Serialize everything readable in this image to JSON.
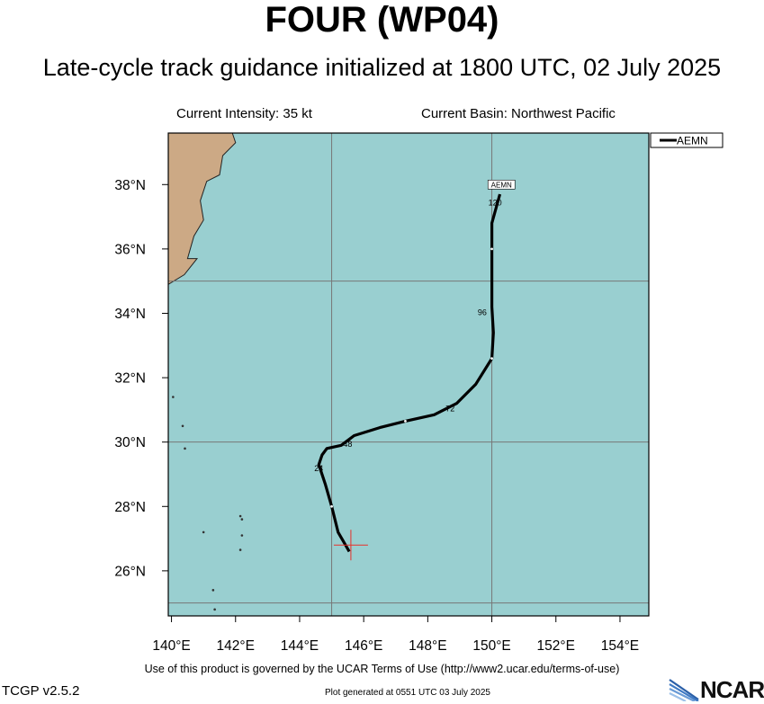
{
  "header": {
    "title": "FOUR (WP04)",
    "subtitle": "Late-cycle track guidance initialized at 1800 UTC, 02 July 2025",
    "current_intensity": "Current Intensity: 35 kt",
    "current_basin": "Current Basin: Northwest Pacific"
  },
  "map": {
    "lon_range": [
      139.9,
      154.9
    ],
    "lat_range": [
      24.6,
      39.6
    ],
    "gridlines_lon": [
      145,
      150
    ],
    "gridlines_lat": [
      25,
      30,
      35
    ],
    "x_ticks": [
      {
        "lon": 140,
        "label": "140°E"
      },
      {
        "lon": 142,
        "label": "142°E"
      },
      {
        "lon": 144,
        "label": "144°E"
      },
      {
        "lon": 146,
        "label": "146°E"
      },
      {
        "lon": 148,
        "label": "148°E"
      },
      {
        "lon": 150,
        "label": "150°E"
      },
      {
        "lon": 152,
        "label": "152°E"
      },
      {
        "lon": 154,
        "label": "154°E"
      }
    ],
    "y_ticks": [
      {
        "lat": 26,
        "label": "26°N"
      },
      {
        "lat": 28,
        "label": "28°N"
      },
      {
        "lat": 30,
        "label": "30°N"
      },
      {
        "lat": 32,
        "label": "32°N"
      },
      {
        "lat": 34,
        "label": "34°N"
      },
      {
        "lat": 36,
        "label": "36°N"
      },
      {
        "lat": 38,
        "label": "38°N"
      }
    ],
    "ocean_color": "#99cfd0",
    "land_color": "#cca985",
    "grid_color": "#777777",
    "current_position": {
      "lon": 145.6,
      "lat": 26.8,
      "color": "#e8302a"
    },
    "land_outline": [
      [
        139.9,
        39.6
      ],
      [
        141.9,
        39.6
      ],
      [
        142.0,
        39.3
      ],
      [
        141.6,
        38.9
      ],
      [
        141.5,
        38.3
      ],
      [
        141.1,
        38.1
      ],
      [
        140.9,
        37.5
      ],
      [
        141.0,
        36.9
      ],
      [
        140.7,
        36.4
      ],
      [
        140.5,
        35.7
      ],
      [
        140.8,
        35.7
      ],
      [
        140.4,
        35.2
      ],
      [
        139.9,
        34.9
      ]
    ],
    "islands": [
      [
        140.35,
        30.5
      ],
      [
        140.42,
        29.8
      ],
      [
        142.15,
        27.7
      ],
      [
        142.2,
        27.6
      ],
      [
        142.2,
        27.1
      ],
      [
        142.15,
        26.65
      ],
      [
        141.3,
        25.4
      ],
      [
        141.35,
        24.8
      ],
      [
        141.0,
        27.2
      ],
      [
        140.05,
        31.4
      ]
    ]
  },
  "legend": {
    "label": "AEMN"
  },
  "chart_data": {
    "type": "track",
    "series": [
      {
        "name": "AEMN",
        "points": [
          [
            145.55,
            26.6
          ],
          [
            145.2,
            27.2
          ],
          [
            145.0,
            28.0
          ],
          [
            144.8,
            28.7
          ],
          [
            144.6,
            29.3
          ],
          [
            144.7,
            29.6
          ],
          [
            144.85,
            29.8
          ],
          [
            145.3,
            29.9
          ],
          [
            145.7,
            30.2
          ],
          [
            146.5,
            30.45
          ],
          [
            147.3,
            30.65
          ],
          [
            148.2,
            30.85
          ],
          [
            148.9,
            31.2
          ],
          [
            149.5,
            31.8
          ],
          [
            150.0,
            32.6
          ],
          [
            150.05,
            33.4
          ],
          [
            150.0,
            34.2
          ],
          [
            150.0,
            35.0
          ],
          [
            150.0,
            36.0
          ],
          [
            150.0,
            36.8
          ],
          [
            150.25,
            37.7
          ]
        ],
        "time_labels": [
          {
            "label": "24",
            "lon": 144.6,
            "lat": 29.1
          },
          {
            "label": "48",
            "lon": 145.5,
            "lat": 29.85
          },
          {
            "label": "72",
            "lon": 148.7,
            "lat": 30.95
          },
          {
            "label": "96",
            "lon": 149.7,
            "lat": 33.95
          },
          {
            "label": "120",
            "lon": 150.1,
            "lat": 37.35
          }
        ],
        "end_label": {
          "label": "AEMN",
          "lon": 150.3,
          "lat": 38.0
        },
        "tick_marks": [
          [
            145.0,
            28.0
          ],
          [
            147.3,
            30.65
          ],
          [
            150.0,
            32.6
          ],
          [
            150.0,
            36.0
          ]
        ]
      }
    ]
  },
  "footer": {
    "terms": "Use of this product is governed by the UCAR Terms of Use (http://www2.ucar.edu/terms-of-use)",
    "version": "TCGP v2.5.2",
    "generated": "Plot generated at 0551 UTC   03 July 2025",
    "logo": "NCAR"
  }
}
